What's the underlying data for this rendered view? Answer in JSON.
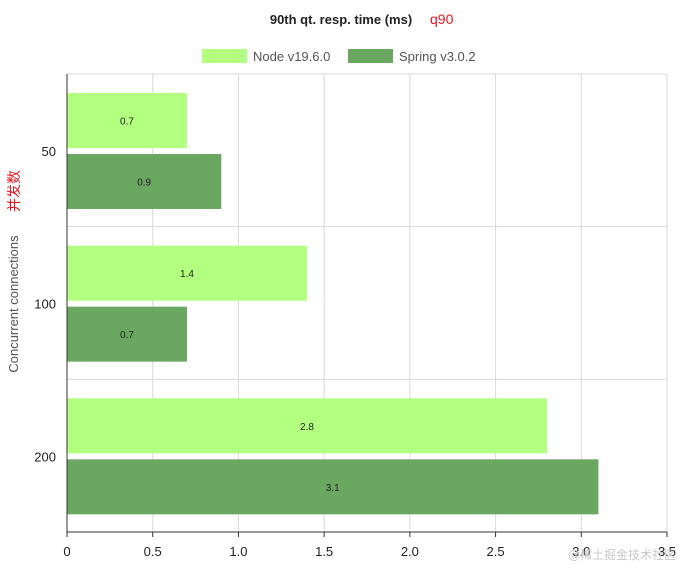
{
  "chart_data": {
    "type": "bar",
    "orientation": "horizontal",
    "title": "90th qt. resp. time (ms)",
    "title_annotation": "q90",
    "xlabel": "",
    "ylabel": "Concurrent connections",
    "ylabel_annotation": "并发数",
    "categories": [
      "50",
      "100",
      "200"
    ],
    "series": [
      {
        "name": "Node v19.6.0",
        "color": "#b3ff80",
        "values": [
          0.7,
          1.4,
          2.8
        ]
      },
      {
        "name": "Spring v3.0.2",
        "color": "#6aa760",
        "values": [
          0.9,
          0.7,
          3.1
        ]
      }
    ],
    "xlim": [
      0,
      3.5
    ],
    "xticks": [
      "0",
      "0.5",
      "1.0",
      "1.5",
      "2.0",
      "2.5",
      "3.0",
      "3.5"
    ],
    "data_labels": [
      [
        "0.7",
        "1.4",
        "2.8"
      ],
      [
        "0.9",
        "0.7",
        "3.1"
      ]
    ],
    "grid": true,
    "legend_position": "top-center"
  },
  "watermark": "@稀土掘金技术社区",
  "colors": {
    "annotation_red": "#e0191f",
    "axis_text": "#222222",
    "ylabel_text": "#555555",
    "grid": "#d9d9d9",
    "axis": "#333333"
  }
}
